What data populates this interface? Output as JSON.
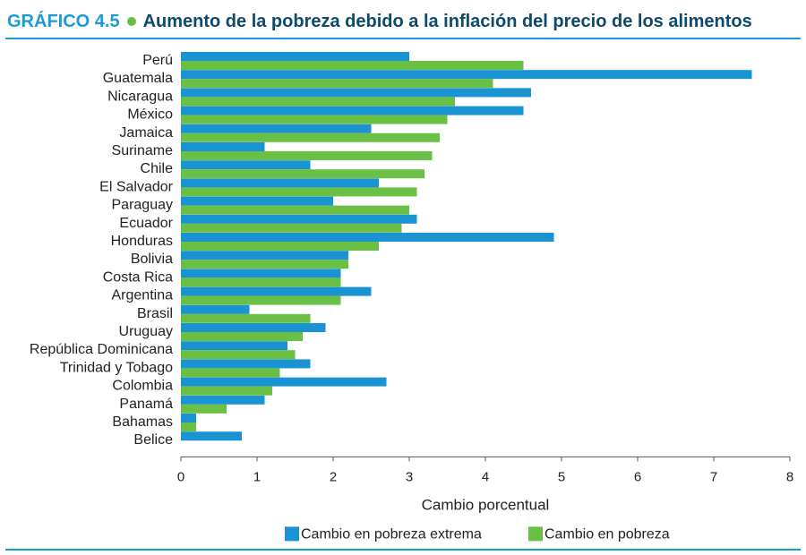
{
  "figure": {
    "prefix": "GRÁFICO 4.5",
    "title": "Aumento de la pobreza debido a la inflación del precio de los alimentos"
  },
  "colors": {
    "header_text": "#1a9bd7",
    "title_text": "#0c4a6e",
    "bullet": "#6abf45",
    "rule": "#1a9bd7",
    "series_extrema": "#1a93d3",
    "series_pobreza": "#6abf45",
    "axis": "#555555",
    "text": "#222222"
  },
  "chart_data": {
    "type": "bar",
    "orientation": "horizontal",
    "categories": [
      "Perú",
      "Guatemala",
      "Nicaragua",
      "México",
      "Jamaica",
      "Suriname",
      "Chile",
      "El Salvador",
      "Paraguay",
      "Ecuador",
      "Honduras",
      "Bolivia",
      "Costa Rica",
      "Argentina",
      "Brasil",
      "Uruguay",
      "República Dominicana",
      "Trinidad y Tobago",
      "Colombia",
      "Panamá",
      "Bahamas",
      "Belice"
    ],
    "series": [
      {
        "name": "Cambio en pobreza extrema",
        "values": [
          3.0,
          7.5,
          4.6,
          4.5,
          2.5,
          1.1,
          1.7,
          2.6,
          2.0,
          3.1,
          4.9,
          2.2,
          2.1,
          2.5,
          0.9,
          1.9,
          1.4,
          1.7,
          2.7,
          1.1,
          0.2,
          0.8
        ]
      },
      {
        "name": "Cambio en pobreza",
        "values": [
          4.5,
          4.1,
          3.6,
          3.5,
          3.4,
          3.3,
          3.2,
          3.1,
          3.0,
          2.9,
          2.6,
          2.2,
          2.1,
          2.1,
          1.7,
          1.6,
          1.5,
          1.3,
          1.2,
          0.6,
          0.2,
          null
        ]
      }
    ],
    "xlabel": "Cambio porcentual",
    "ylabel": "",
    "xlim": [
      0,
      8
    ],
    "xticks": [
      "0",
      "1",
      "2",
      "3",
      "4",
      "5",
      "6",
      "7",
      "8"
    ],
    "grid": false,
    "legend_position": "bottom"
  }
}
